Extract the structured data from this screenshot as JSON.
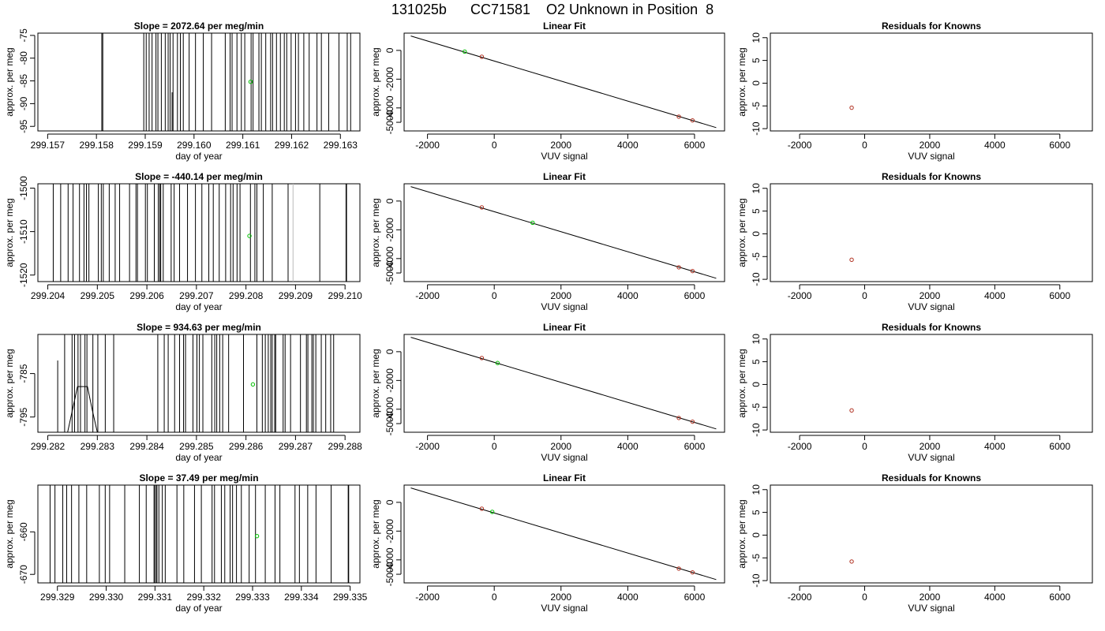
{
  "page_title": "131025b      CC71581    O2 Unknown in Position  8",
  "colors": {
    "line": "#000000",
    "unknown_point": "#00c000",
    "known_point": "#b03020",
    "faint_line": "#bbbbbb"
  },
  "chart_data": [
    {
      "type": "line",
      "title": "Slope =  2072.64  per meg/min",
      "xlabel": "day of year",
      "ylabel": "approx. per meg",
      "xlim": [
        299.1568,
        299.1634
      ],
      "ylim": [
        -96,
        -74.5
      ],
      "xticks": [
        "299.157",
        "299.158",
        "299.159",
        "299.160",
        "299.161",
        "299.162",
        "299.163"
      ],
      "yticks": [
        "-95",
        "-90",
        "-85",
        "-80",
        "-75"
      ],
      "spikes": [
        299.15811,
        299.15813,
        299.15897,
        299.15902,
        299.15908,
        299.15914,
        299.15922,
        299.15926,
        299.15933,
        299.15941,
        299.15947,
        299.15951,
        299.15957,
        299.15966,
        299.15972,
        299.15978,
        299.1599,
        299.16003,
        299.16019,
        299.16036,
        299.16064,
        299.16074,
        299.16078,
        299.16088,
        299.16097,
        299.16104,
        299.16117,
        299.16121,
        299.16133,
        299.16138,
        299.16147,
        299.16157,
        299.16161,
        299.16169,
        299.16177,
        299.16185,
        299.1619,
        299.16199,
        299.16208,
        299.16214,
        299.16225,
        299.16236,
        299.16252,
        299.16261,
        299.16276,
        299.16297,
        299.16314,
        299.16321
      ],
      "partial_spikes": [
        {
          "x": 299.15955,
          "y_top": -87.5
        }
      ],
      "unknown_point": {
        "x": 299.16116,
        "y": -85.2
      }
    },
    {
      "type": "line",
      "title": "Slope =  -440.14  per meg/min",
      "xlabel": "day of year",
      "ylabel": "approx. per meg",
      "xlim": [
        299.2038,
        299.2103
      ],
      "ylim": [
        -1521.5,
        -1499
      ],
      "xticks": [
        "299.204",
        "299.205",
        "299.206",
        "299.207",
        "299.208",
        "299.209",
        "299.210"
      ],
      "yticks": [
        "-1520",
        "-1510",
        "-1500"
      ],
      "spikes": [
        299.20411,
        299.20426,
        299.20441,
        299.20451,
        299.20464,
        299.20473,
        299.20478,
        299.20483,
        299.20502,
        299.20508,
        299.20512,
        299.20524,
        299.20536,
        299.20545,
        299.20565,
        299.20578,
        299.20581,
        299.20597,
        299.20601,
        299.20615,
        299.20623,
        299.20626,
        299.20628,
        299.20633,
        299.20649,
        299.20655,
        299.20666,
        299.20682,
        299.20698,
        299.20711,
        299.20725,
        299.20734,
        299.20746,
        299.20759,
        299.20769,
        299.20774,
        299.20782,
        299.20788,
        299.20809,
        299.20818,
        299.20822,
        299.20835,
        299.20853,
        299.20885,
        299.20949,
        299.21002,
        299.21003
      ],
      "faint_spikes": [
        299.20895
      ],
      "unknown_point": {
        "x": 299.20807,
        "y": -1511
      }
    },
    {
      "type": "line",
      "title": "Slope =  934.63  per meg/min",
      "xlabel": "day of year",
      "ylabel": "approx. per meg",
      "xlim": [
        299.2818,
        299.2883
      ],
      "ylim": [
        -798.5,
        -776
      ],
      "xticks": [
        "299.282",
        "299.283",
        "299.284",
        "299.285",
        "299.286",
        "299.287",
        "299.288"
      ],
      "yticks": [
        "-795",
        "-785"
      ],
      "spikes": [
        299.28234,
        299.28249,
        299.28254,
        299.28261,
        299.28266,
        299.28275,
        299.28279,
        299.28291,
        299.28301,
        299.28316,
        299.28333,
        299.28422,
        299.28435,
        299.28443,
        299.28456,
        299.28466,
        299.28474,
        299.28478,
        299.28493,
        299.28501,
        299.28506,
        299.28513,
        299.28531,
        299.28537,
        299.28541,
        299.28547,
        299.28553,
        299.28565,
        299.28595,
        299.28622,
        299.28633,
        299.28639,
        299.28645,
        299.2865,
        299.28653,
        299.28658,
        299.2866,
        299.28675,
        299.28679,
        299.2869,
        299.2871,
        299.28722,
        299.28725,
        299.28733,
        299.28736,
        299.28741,
        299.28752,
        299.28761,
        299.28771,
        299.28777
      ],
      "partial_spikes": [
        {
          "x": 299.2822,
          "y_top": -782
        }
      ],
      "zigzag": [
        [
          299.2824,
          -798.5
        ],
        [
          299.2826,
          -788
        ],
        [
          299.2828,
          -788
        ],
        [
          299.2829,
          -793.5
        ],
        [
          299.283,
          -798.5
        ]
      ],
      "unknown_point": {
        "x": 299.28614,
        "y": -787.5
      }
    },
    {
      "type": "line",
      "title": "Slope =  37.49  per meg/min",
      "xlabel": "day of year",
      "ylabel": "approx. per meg",
      "xlim": [
        299.3286,
        299.3352
      ],
      "ylim": [
        -672,
        -649
      ],
      "xticks": [
        "299.329",
        "299.330",
        "299.331",
        "299.332",
        "299.333",
        "299.334",
        "299.335"
      ],
      "yticks": [
        "-670",
        "-660"
      ],
      "spikes": [
        299.32885,
        299.32895,
        299.32911,
        299.32919,
        299.32929,
        299.32944,
        299.3296,
        299.32986,
        299.32998,
        299.33007,
        299.33038,
        299.33068,
        299.33082,
        299.33098,
        299.331,
        299.33103,
        299.33104,
        299.33108,
        299.33115,
        299.33121,
        299.33145,
        299.33159,
        299.33181,
        299.33195,
        299.33217,
        299.33222,
        299.33236,
        299.33243,
        299.33254,
        299.33259,
        299.33267,
        299.33277,
        299.33293,
        299.33306,
        299.33326,
        299.33346,
        299.33356,
        299.33387,
        299.33396,
        299.33413,
        299.3343,
        299.33461,
        299.33496,
        299.33497
      ],
      "unknown_point": {
        "x": 299.33309,
        "y": -661
      }
    },
    {
      "type": "scatter",
      "title": "Linear Fit",
      "xlabel": "VUV signal",
      "ylabel": "approx. per meg",
      "xlim": [
        -2700,
        6900
      ],
      "ylim": [
        -5600,
        1200
      ],
      "xticks": [
        "-2000",
        "0",
        "2000",
        "4000",
        "6000"
      ],
      "yticks": [
        "-5000",
        "-4000",
        "-2000",
        "0"
      ],
      "fit_line": {
        "x": [
          -2500,
          6650
        ],
        "y": [
          1000,
          -5370
        ]
      },
      "known_points": [
        [
          -373,
          -440
        ],
        [
          5530,
          -4607
        ],
        [
          5940,
          -4868
        ]
      ],
      "unknown_point": [
        -885,
        -87
      ]
    },
    {
      "type": "scatter",
      "title": "Linear Fit",
      "xlabel": "VUV signal",
      "ylabel": "approx. per meg",
      "xlim": [
        -2700,
        6900
      ],
      "ylim": [
        -5600,
        1200
      ],
      "xticks": [
        "-2000",
        "0",
        "2000",
        "4000",
        "6000"
      ],
      "yticks": [
        "-5000",
        "-4000",
        "-2000",
        "0"
      ],
      "fit_line": {
        "x": [
          -2500,
          6650
        ],
        "y": [
          1000,
          -5370
        ]
      },
      "known_points": [
        [
          -373,
          -440
        ],
        [
          5530,
          -4607
        ],
        [
          5940,
          -4868
        ]
      ],
      "unknown_point": [
        1150,
        -1510
      ]
    },
    {
      "type": "scatter",
      "title": "Linear Fit",
      "xlabel": "VUV signal",
      "ylabel": "approx. per meg",
      "xlim": [
        -2700,
        6900
      ],
      "ylim": [
        -5600,
        1200
      ],
      "xticks": [
        "-2000",
        "0",
        "2000",
        "4000",
        "6000"
      ],
      "yticks": [
        "-5000",
        "-4000",
        "-2000",
        "0"
      ],
      "fit_line": {
        "x": [
          -2500,
          6650
        ],
        "y": [
          1000,
          -5370
        ]
      },
      "known_points": [
        [
          -373,
          -440
        ],
        [
          5530,
          -4607
        ],
        [
          5940,
          -4868
        ]
      ],
      "unknown_point": [
        100,
        -787
      ]
    },
    {
      "type": "scatter",
      "title": "Linear Fit",
      "xlabel": "VUV signal",
      "ylabel": "approx. per meg",
      "xlim": [
        -2700,
        6900
      ],
      "ylim": [
        -5600,
        1200
      ],
      "xticks": [
        "-2000",
        "0",
        "2000",
        "4000",
        "6000"
      ],
      "yticks": [
        "-5000",
        "-4000",
        "-2000",
        "0"
      ],
      "fit_line": {
        "x": [
          -2500,
          6650
        ],
        "y": [
          1000,
          -5370
        ]
      },
      "known_points": [
        [
          -373,
          -440
        ],
        [
          5530,
          -4607
        ],
        [
          5940,
          -4868
        ]
      ],
      "unknown_point": [
        -60,
        -661
      ]
    },
    {
      "type": "scatter",
      "title": "Residuals for Knowns",
      "xlabel": "VUV signal",
      "ylabel": "approx. per meg",
      "xlim": [
        -2900,
        7000
      ],
      "ylim": [
        -10.5,
        11
      ],
      "xticks": [
        "-2000",
        "0",
        "2000",
        "4000",
        "6000"
      ],
      "yticks": [
        "-10",
        "-5",
        "0",
        "5",
        "10"
      ],
      "known_points": [
        [
          -400,
          -5.4
        ]
      ]
    },
    {
      "type": "scatter",
      "title": "Residuals for Knowns",
      "xlabel": "VUV signal",
      "ylabel": "approx. per meg",
      "xlim": [
        -2900,
        7000
      ],
      "ylim": [
        -10.5,
        11
      ],
      "xticks": [
        "-2000",
        "0",
        "2000",
        "4000",
        "6000"
      ],
      "yticks": [
        "-10",
        "-5",
        "0",
        "5",
        "10"
      ],
      "known_points": [
        [
          -400,
          -5.7
        ]
      ]
    },
    {
      "type": "scatter",
      "title": "Residuals for Knowns",
      "xlabel": "VUV signal",
      "ylabel": "approx. per meg",
      "xlim": [
        -2900,
        7000
      ],
      "ylim": [
        -10.5,
        11
      ],
      "xticks": [
        "-2000",
        "0",
        "2000",
        "4000",
        "6000"
      ],
      "yticks": [
        "-10",
        "-5",
        "0",
        "5",
        "10"
      ],
      "known_points": [
        [
          -400,
          -5.7
        ]
      ]
    },
    {
      "type": "scatter",
      "title": "Residuals for Knowns",
      "xlabel": "VUV signal",
      "ylabel": "approx. per meg",
      "xlim": [
        -2900,
        7000
      ],
      "ylim": [
        -10.5,
        11
      ],
      "xticks": [
        "-2000",
        "0",
        "2000",
        "4000",
        "6000"
      ],
      "yticks": [
        "-10",
        "-5",
        "0",
        "5",
        "10"
      ],
      "known_points": [
        [
          -400,
          -5.8
        ]
      ]
    }
  ]
}
